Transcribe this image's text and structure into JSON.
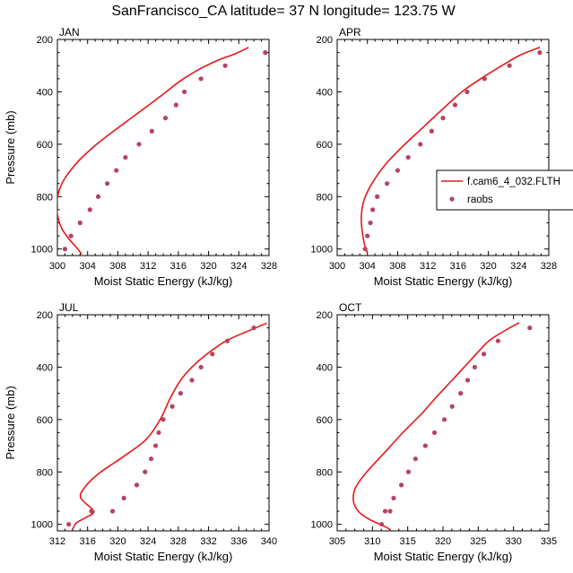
{
  "title": "SanFrancisco_CA  latitude= 37 N longitude= 123.75 W",
  "legend": {
    "model_label": "f.cam6_4_032.FLTH",
    "obs_label": "raobs"
  },
  "colors": {
    "model_line": "#e8161a",
    "obs_marker": "#b7435e",
    "axes": "#000000"
  },
  "chart_data": [
    {
      "type": "line",
      "title": "JAN",
      "xlabel": "Moist Static Energy (kJ/kg)",
      "ylabel": "Pressure (mb)",
      "xlim": [
        300,
        328
      ],
      "ylim": [
        200,
        1025
      ],
      "y_inverted": true,
      "xticks": [
        300,
        304,
        308,
        312,
        316,
        320,
        324,
        328
      ],
      "yticks": [
        200,
        400,
        600,
        800,
        1000
      ],
      "series": [
        {
          "name": "f.cam6_4_032.FLTH",
          "kind": "line",
          "x": [
            325.3,
            323.5,
            321.2,
            318.7,
            316.2,
            313.5,
            310.7,
            307.9,
            305.2,
            302.6,
            300.6,
            299.9,
            300.4,
            301.5,
            302.7,
            303.2
          ],
          "y": [
            230,
            255,
            280,
            315,
            360,
            420,
            480,
            540,
            600,
            670,
            750,
            830,
            910,
            960,
            1000,
            1020
          ]
        },
        {
          "name": "raobs",
          "kind": "scatter",
          "x": [
            327.5,
            322.2,
            319.0,
            316.8,
            315.7,
            314.3,
            312.5,
            310.8,
            309.0,
            307.8,
            306.6,
            305.4,
            304.3,
            303.0,
            301.8,
            301.0
          ],
          "y": [
            250,
            300,
            350,
            400,
            450,
            500,
            550,
            600,
            650,
            700,
            750,
            800,
            850,
            900,
            950,
            1000
          ]
        }
      ]
    },
    {
      "type": "line",
      "title": "APR",
      "xlabel": "Moist Static Energy (kJ/kg)",
      "ylabel": "",
      "xlim": [
        300,
        328
      ],
      "ylim": [
        200,
        1025
      ],
      "y_inverted": true,
      "xticks": [
        300,
        304,
        308,
        312,
        316,
        320,
        324,
        328
      ],
      "yticks": [
        200,
        400,
        600,
        800,
        1000
      ],
      "series": [
        {
          "name": "f.cam6_4_032.FLTH",
          "kind": "line",
          "x": [
            326.8,
            324.2,
            321.8,
            319.0,
            316.5,
            313.8,
            311.2,
            308.6,
            306.3,
            304.6,
            303.6,
            303.2,
            303.3,
            303.6,
            304.0
          ],
          "y": [
            230,
            260,
            300,
            350,
            400,
            470,
            540,
            610,
            680,
            750,
            810,
            870,
            930,
            980,
            1015
          ]
        },
        {
          "name": "raobs",
          "kind": "scatter",
          "x": [
            326.8,
            322.8,
            319.5,
            317.2,
            315.6,
            314.0,
            312.5,
            311.0,
            309.4,
            308.0,
            306.6,
            305.3,
            304.7,
            304.4,
            304.0,
            303.7
          ],
          "y": [
            250,
            300,
            350,
            400,
            450,
            500,
            550,
            600,
            650,
            700,
            750,
            800,
            850,
            900,
            950,
            1000
          ]
        }
      ]
    },
    {
      "type": "line",
      "title": "JUL",
      "xlabel": "Moist Static Energy (kJ/kg)",
      "ylabel": "Pressure (mb)",
      "xlim": [
        312,
        340
      ],
      "ylim": [
        200,
        1025
      ],
      "y_inverted": true,
      "xticks": [
        312,
        316,
        320,
        324,
        328,
        332,
        336,
        340
      ],
      "yticks": [
        200,
        400,
        600,
        800,
        1000
      ],
      "series": [
        {
          "name": "f.cam6_4_032.FLTH",
          "kind": "line",
          "x": [
            339.7,
            337.0,
            334.3,
            331.8,
            329.8,
            328.3,
            326.9,
            325.6,
            323.6,
            320.3,
            317.3,
            315.6,
            315.1,
            316.8,
            315.7,
            314.5,
            314.0
          ],
          "y": [
            232,
            265,
            300,
            350,
            400,
            450,
            520,
            600,
            680,
            750,
            810,
            860,
            900,
            950,
            975,
            995,
            1020
          ]
        },
        {
          "name": "raobs",
          "kind": "scatter",
          "x": [
            338.0,
            334.5,
            332.5,
            331.0,
            329.8,
            328.3,
            327.2,
            326.0,
            325.4,
            325.0,
            324.4,
            323.6,
            322.5,
            320.8,
            319.3,
            316.5,
            313.5
          ],
          "y": [
            250,
            300,
            350,
            400,
            450,
            500,
            550,
            600,
            650,
            700,
            750,
            800,
            850,
            900,
            950,
            950,
            1000
          ]
        }
      ]
    },
    {
      "type": "line",
      "title": "OCT",
      "xlabel": "Moist Static Energy (kJ/kg)",
      "ylabel": "",
      "xlim": [
        305,
        335
      ],
      "ylim": [
        200,
        1025
      ],
      "y_inverted": true,
      "xticks": [
        305,
        310,
        315,
        320,
        325,
        330,
        335
      ],
      "yticks": [
        200,
        400,
        600,
        800,
        1000
      ],
      "series": [
        {
          "name": "f.cam6_4_032.FLTH",
          "kind": "line",
          "x": [
            330.8,
            328.5,
            326.5,
            324.7,
            323.0,
            321.3,
            319.2,
            316.9,
            314.3,
            311.6,
            309.2,
            307.6,
            307.3,
            308.0,
            309.5,
            311.5,
            312.5
          ],
          "y": [
            230,
            265,
            300,
            350,
            400,
            450,
            510,
            580,
            650,
            730,
            800,
            860,
            910,
            950,
            980,
            1005,
            1020
          ]
        },
        {
          "name": "raobs",
          "kind": "scatter",
          "x": [
            332.3,
            327.8,
            325.8,
            324.5,
            323.5,
            322.5,
            321.3,
            320.2,
            318.8,
            317.5,
            316.1,
            315.1,
            314.1,
            313.0,
            312.5,
            311.8,
            311.3
          ],
          "y": [
            250,
            300,
            350,
            400,
            450,
            500,
            550,
            600,
            650,
            700,
            750,
            800,
            850,
            900,
            950,
            950,
            1000
          ]
        }
      ]
    }
  ]
}
